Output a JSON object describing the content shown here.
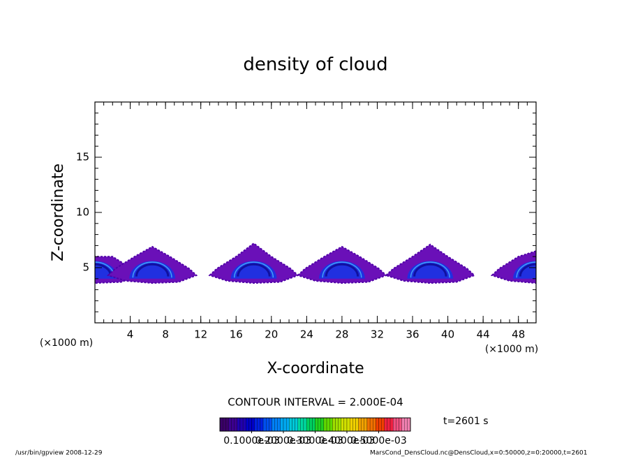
{
  "chart_data": {
    "type": "contour",
    "title": "density of cloud",
    "xlabel": "X-coordinate",
    "ylabel": "Z-coordinate",
    "xunit": "(×1000 m)",
    "xlim": [
      0,
      50
    ],
    "xticks": [
      4,
      8,
      12,
      16,
      20,
      24,
      28,
      32,
      36,
      40,
      44,
      48
    ],
    "ylim": [
      0,
      20
    ],
    "yticks": [
      5,
      10,
      15
    ],
    "clouds": [
      {
        "x": 0,
        "top": 6.0
      },
      {
        "x": 6.5,
        "top": 6.9
      },
      {
        "x": 18,
        "top": 7.2
      },
      {
        "x": 28,
        "top": 6.9
      },
      {
        "x": 38,
        "top": 7.1
      },
      {
        "x": 50,
        "top": 6.5
      }
    ],
    "contour_interval": "CONTOUR INTERVAL = 2.000E-04",
    "time": "t=2601 s",
    "colorbar": {
      "lim": [
        0,
        0.0006
      ],
      "ticks": [
        {
          "value": 0.0001,
          "label": "0.1000e-03"
        },
        {
          "value": 0.0002,
          "label": "0.2000e-03"
        },
        {
          "value": 0.0003,
          "label": "0.3000e-03"
        },
        {
          "value": 0.0004,
          "label": "0.4000e-03"
        },
        {
          "value": 0.0005,
          "label": "0.5000e-03"
        }
      ],
      "colors": [
        "#3a0068",
        "#3c0090",
        "#2000b0",
        "#0000c8",
        "#0020e0",
        "#0050f0",
        "#0080f8",
        "#00a8f0",
        "#00c8d8",
        "#00d8a0",
        "#00d060",
        "#20d020",
        "#60d800",
        "#a0e000",
        "#d0e000",
        "#f0d000",
        "#f0a000",
        "#f07000",
        "#f04000",
        "#f02040",
        "#f05080",
        "#f080b0"
      ]
    },
    "footer_left": "/usr/bin/gpview   2008-12-29",
    "footer_right": "MarsCond_DensCloud.nc@DensCloud,x=0:50000,z=0:20000,t=2601"
  }
}
